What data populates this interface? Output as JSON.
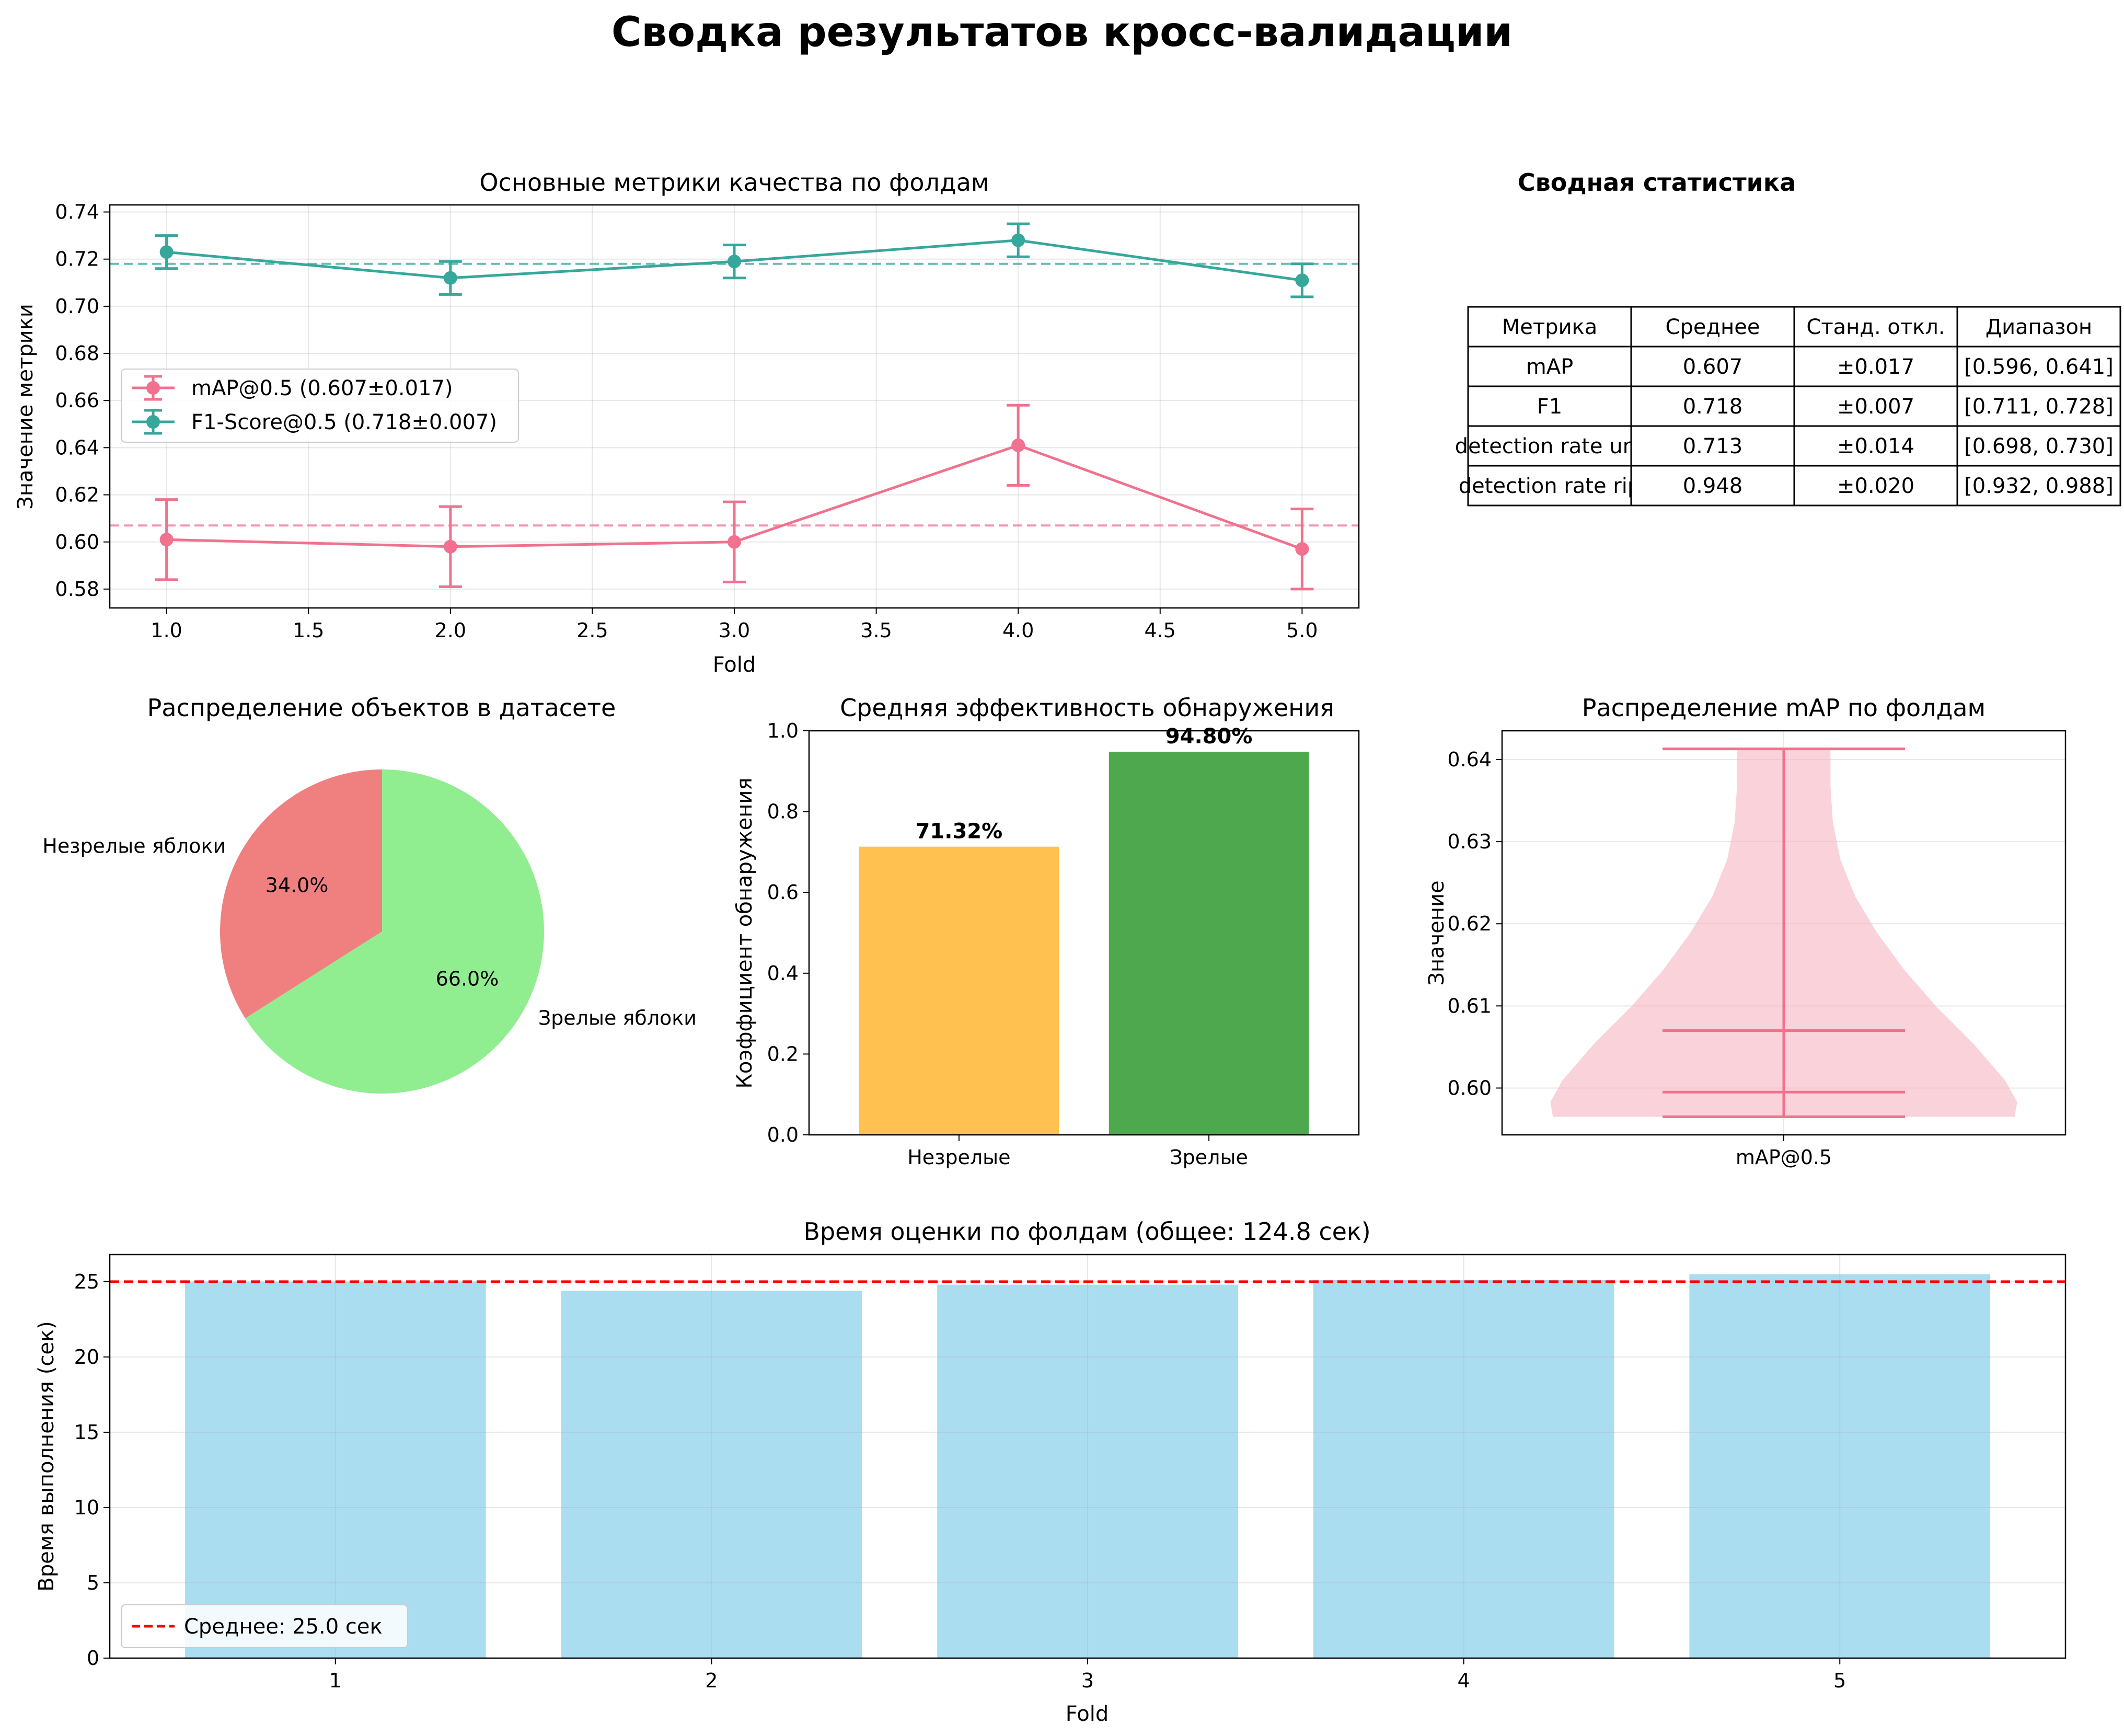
{
  "suptitle": "Сводка результатов кросс-валидации",
  "colors": {
    "map": "#f0728e",
    "f1": "#36a79b",
    "unripe": "#ffb630",
    "ripe": "#2f9a2f",
    "pie_unripe": "#f08080",
    "pie_ripe": "#90ee90",
    "violin": "#f7b4c1",
    "time_bar": "#87ceeb",
    "mean_line": "#ff0000"
  },
  "chart_data": [
    {
      "id": "metrics",
      "type": "line",
      "title": "Основные метрики качества по фолдам",
      "xlabel": "Fold",
      "ylabel": "Значение метрики",
      "x": [
        1,
        2,
        3,
        4,
        5
      ],
      "xlim": [
        0.8,
        5.2
      ],
      "ylim": [
        0.572,
        0.743
      ],
      "xticks": [
        "1.0",
        "1.5",
        "2.0",
        "2.5",
        "3.0",
        "3.5",
        "4.0",
        "4.5",
        "5.0"
      ],
      "yticks": [
        "0.58",
        "0.60",
        "0.62",
        "0.64",
        "0.66",
        "0.68",
        "0.70",
        "0.72",
        "0.74"
      ],
      "grid": true,
      "legend_position": "center-left",
      "series": [
        {
          "name": "mAP@0.5 (0.607±0.017)",
          "values": [
            0.601,
            0.598,
            0.6,
            0.641,
            0.597
          ],
          "err": [
            0.017,
            0.017,
            0.017,
            0.017,
            0.017
          ],
          "mean": 0.607
        },
        {
          "name": "F1-Score@0.5 (0.718±0.007)",
          "values": [
            0.723,
            0.712,
            0.719,
            0.728,
            0.711
          ],
          "err": [
            0.007,
            0.007,
            0.007,
            0.007,
            0.007
          ],
          "mean": 0.718
        }
      ]
    },
    {
      "id": "summary_table",
      "type": "table",
      "title": "Сводная статистика",
      "columns": [
        "Метрика",
        "Среднее",
        "Станд. откл.",
        "Диапазон"
      ],
      "rows": [
        [
          "mAP",
          "0.607",
          "±0.017",
          "[0.596, 0.641]"
        ],
        [
          "F1",
          "0.718",
          "±0.007",
          "[0.711, 0.728]"
        ],
        [
          "detection rate unr",
          "0.713",
          "±0.014",
          "[0.698, 0.730]"
        ],
        [
          "detection rate rip",
          "0.948",
          "±0.020",
          "[0.932, 0.988]"
        ]
      ]
    },
    {
      "id": "pie",
      "type": "pie",
      "title": "Распределение объектов в датасете",
      "labels": [
        "Незрелые яблоки",
        "Зрелые яблоки"
      ],
      "values": [
        34.0,
        66.0
      ],
      "pct_labels": [
        "34.0%",
        "66.0%"
      ]
    },
    {
      "id": "detection",
      "type": "bar",
      "title": "Средняя эффективность обнаружения",
      "ylabel": "Коэффициент обнаружения",
      "categories": [
        "Незрелые",
        "Зрелые"
      ],
      "values": [
        0.7132,
        0.948
      ],
      "value_labels": [
        "71.32%",
        "94.80%"
      ],
      "ylim": [
        0,
        1.0
      ],
      "yticks": [
        "0.0",
        "0.2",
        "0.4",
        "0.6",
        "0.8",
        "1.0"
      ]
    },
    {
      "id": "violin",
      "type": "violin",
      "title": "Распределение mAP по фолдам",
      "ylabel": "Значение",
      "categories": [
        "mAP@0.5"
      ],
      "min": 0.5965,
      "max": 0.6413,
      "mean": 0.607,
      "median": 0.5995,
      "ylim": [
        0.5943,
        0.6435
      ],
      "yticks": [
        "0.60",
        "0.61",
        "0.62",
        "0.63",
        "0.64"
      ],
      "grid": true
    },
    {
      "id": "timing",
      "type": "bar",
      "title": "Время оценки по фолдам (общее: 124.8 сек)",
      "xlabel": "Fold",
      "ylabel": "Время выполнения (сек)",
      "categories": [
        "1",
        "2",
        "3",
        "4",
        "5"
      ],
      "values": [
        25.0,
        24.4,
        24.8,
        25.1,
        25.5
      ],
      "mean": 25.0,
      "mean_label": "Среднее: 25.0 сек",
      "ylim": [
        0,
        26.8
      ],
      "yticks": [
        "0",
        "5",
        "10",
        "15",
        "20",
        "25"
      ],
      "grid": true,
      "legend_position": "lower-left"
    }
  ]
}
